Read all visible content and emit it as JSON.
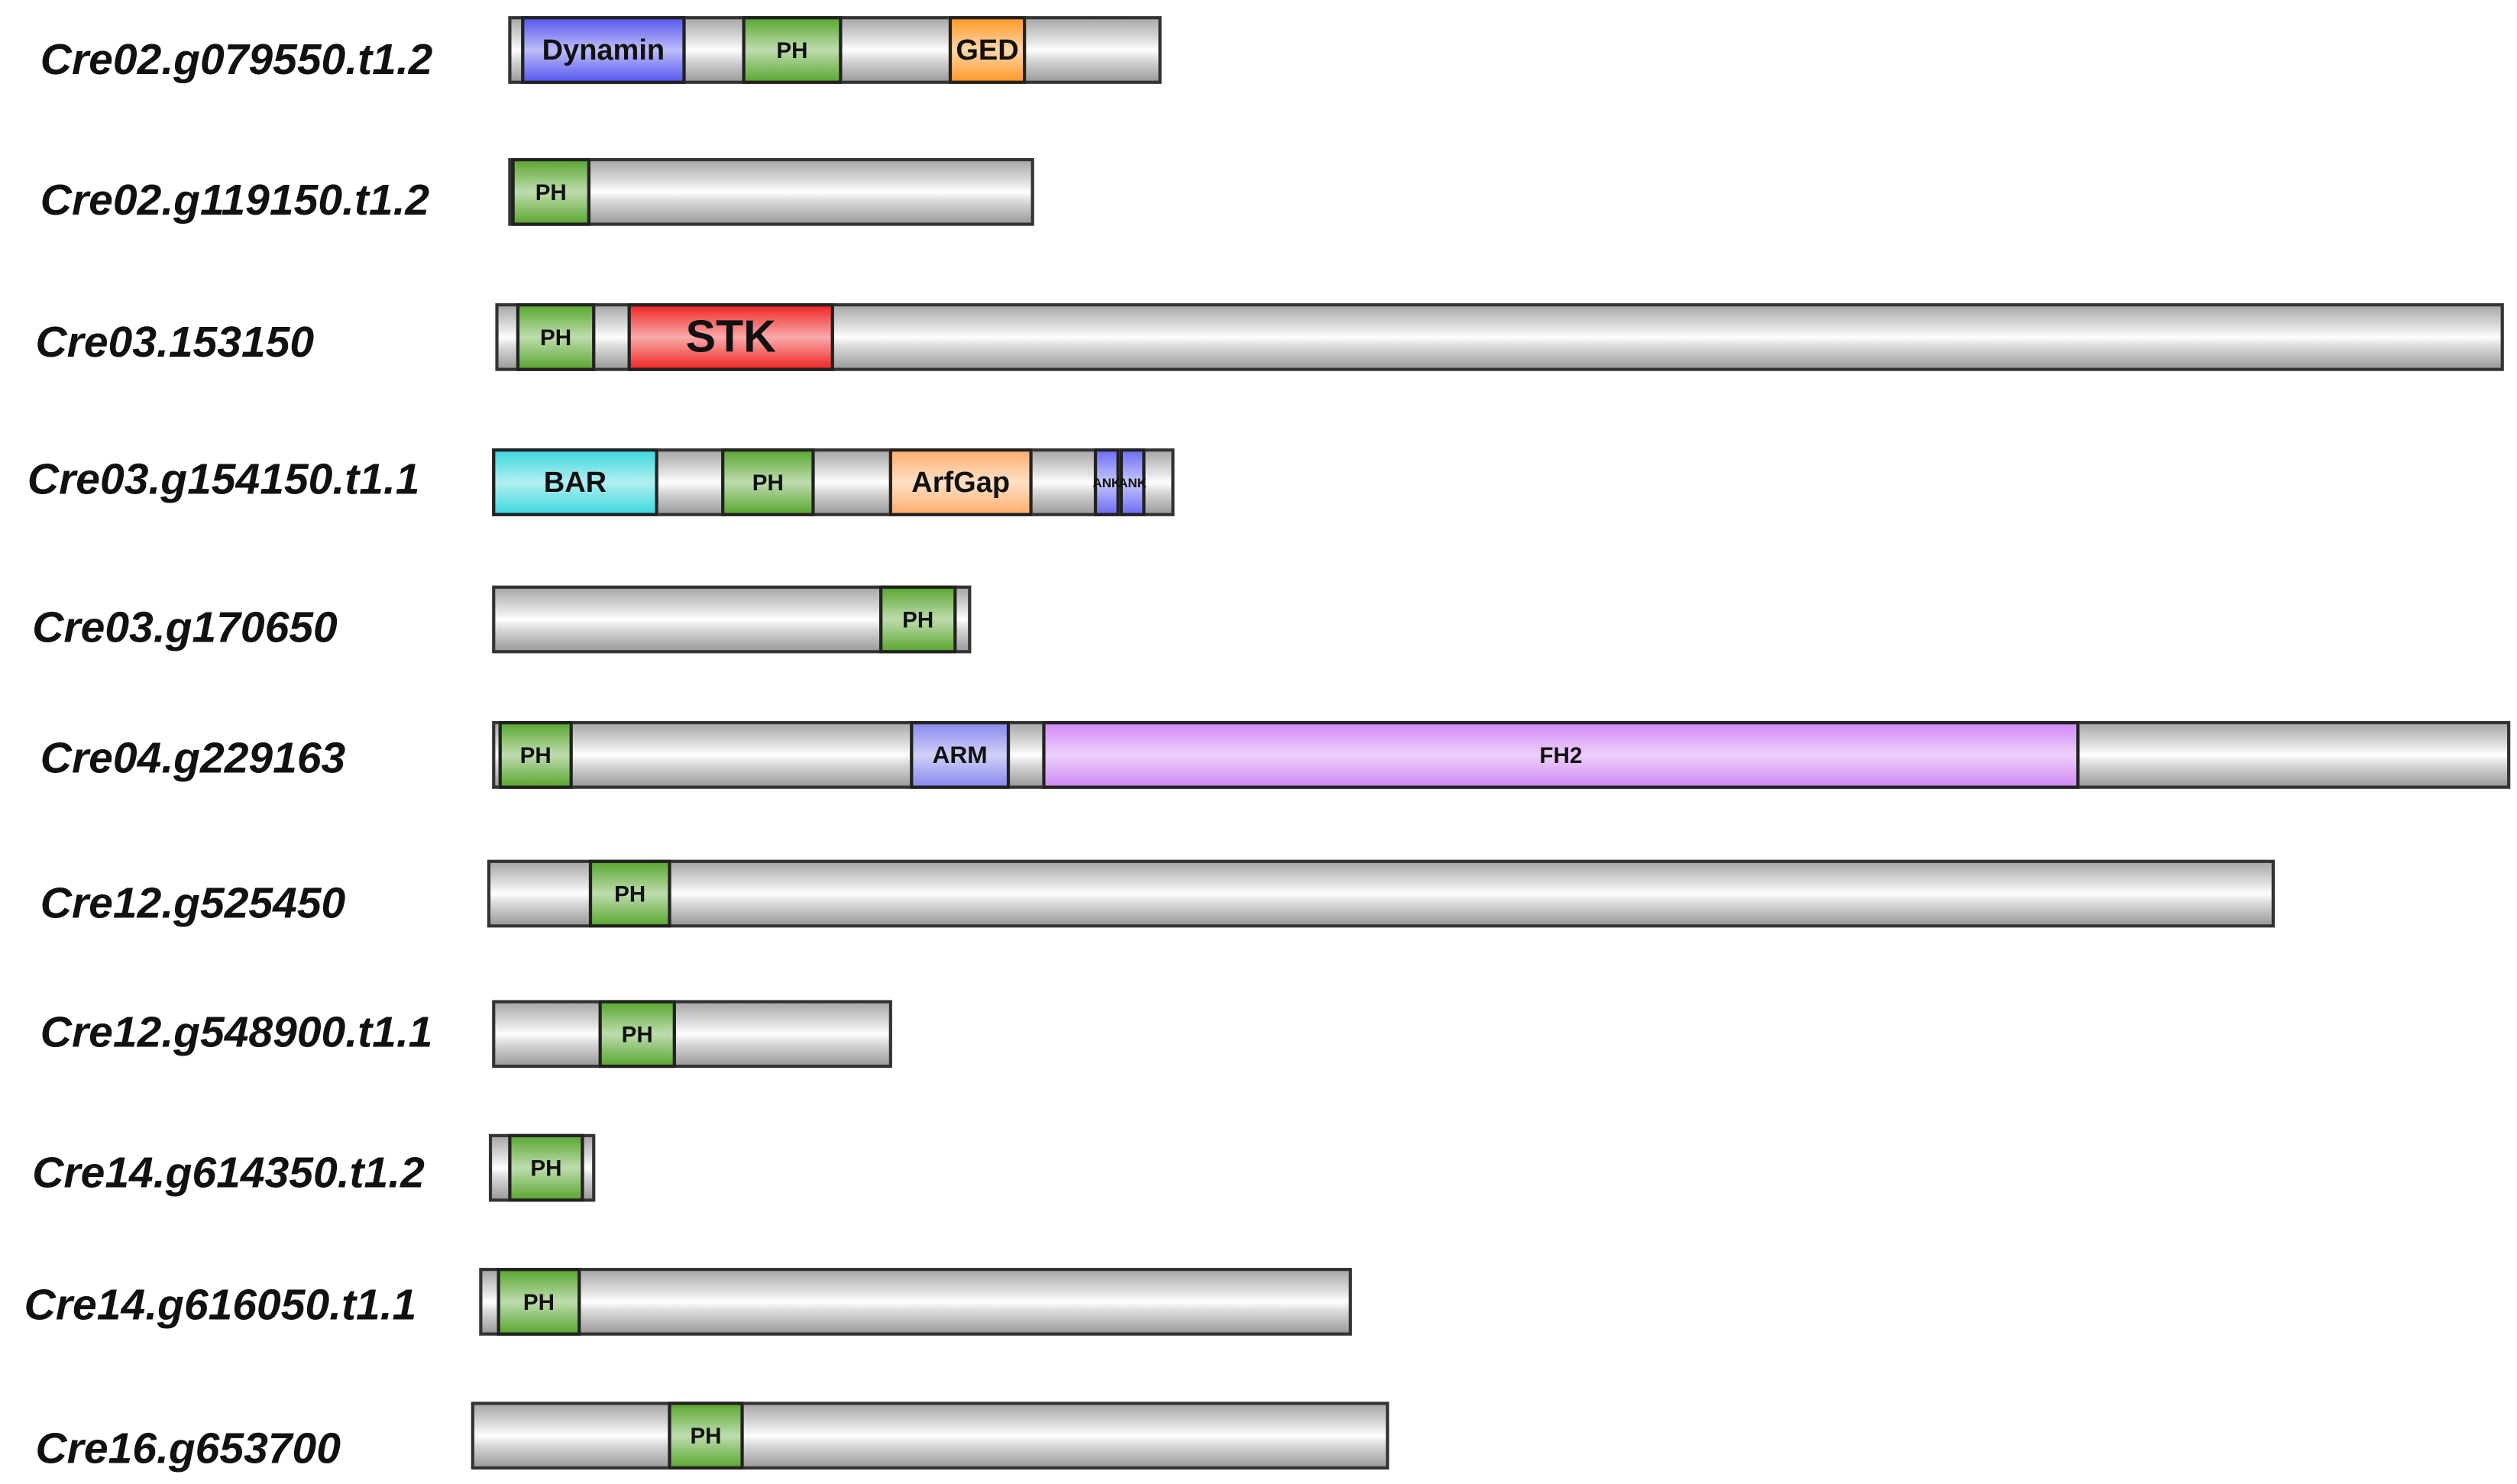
{
  "domain_colors": {
    "Dynamin": "#5a5af0",
    "PH": "#5da834",
    "GED": "#ff9a2a",
    "STK": "#f02a2a",
    "BAR": "#3fd8df",
    "ArfGap": "#ffb070",
    "ANK": "#7070f5",
    "ARM": "#8a8aee",
    "FH2": "#d18af5"
  },
  "proteins": [
    {
      "name": "Cre02.g079550.t1.2",
      "domains": [
        "Dynamin",
        "PH",
        "GED"
      ]
    },
    {
      "name": "Cre02.g119150.t1.2",
      "domains": [
        "PH"
      ]
    },
    {
      "name": "Cre03.153150",
      "domains": [
        "PH",
        "STK"
      ]
    },
    {
      "name": "Cre03.g154150.t1.1",
      "domains": [
        "BAR",
        "PH",
        "ArfGap",
        "ANK",
        "ANK"
      ]
    },
    {
      "name": "Cre03.g170650",
      "domains": [
        "PH"
      ]
    },
    {
      "name": "Cre04.g229163",
      "domains": [
        "PH",
        "ARM",
        "FH2"
      ]
    },
    {
      "name": "Cre12.g525450",
      "domains": [
        "PH"
      ]
    },
    {
      "name": "Cre12.g548900.t1.1",
      "domains": [
        "PH"
      ]
    },
    {
      "name": "Cre14.g614350.t1.2",
      "domains": [
        "PH"
      ]
    },
    {
      "name": "Cre14.g616050.t1.1",
      "domains": [
        "PH"
      ]
    },
    {
      "name": "Cre16.g653700",
      "domains": [
        "PH"
      ]
    }
  ]
}
